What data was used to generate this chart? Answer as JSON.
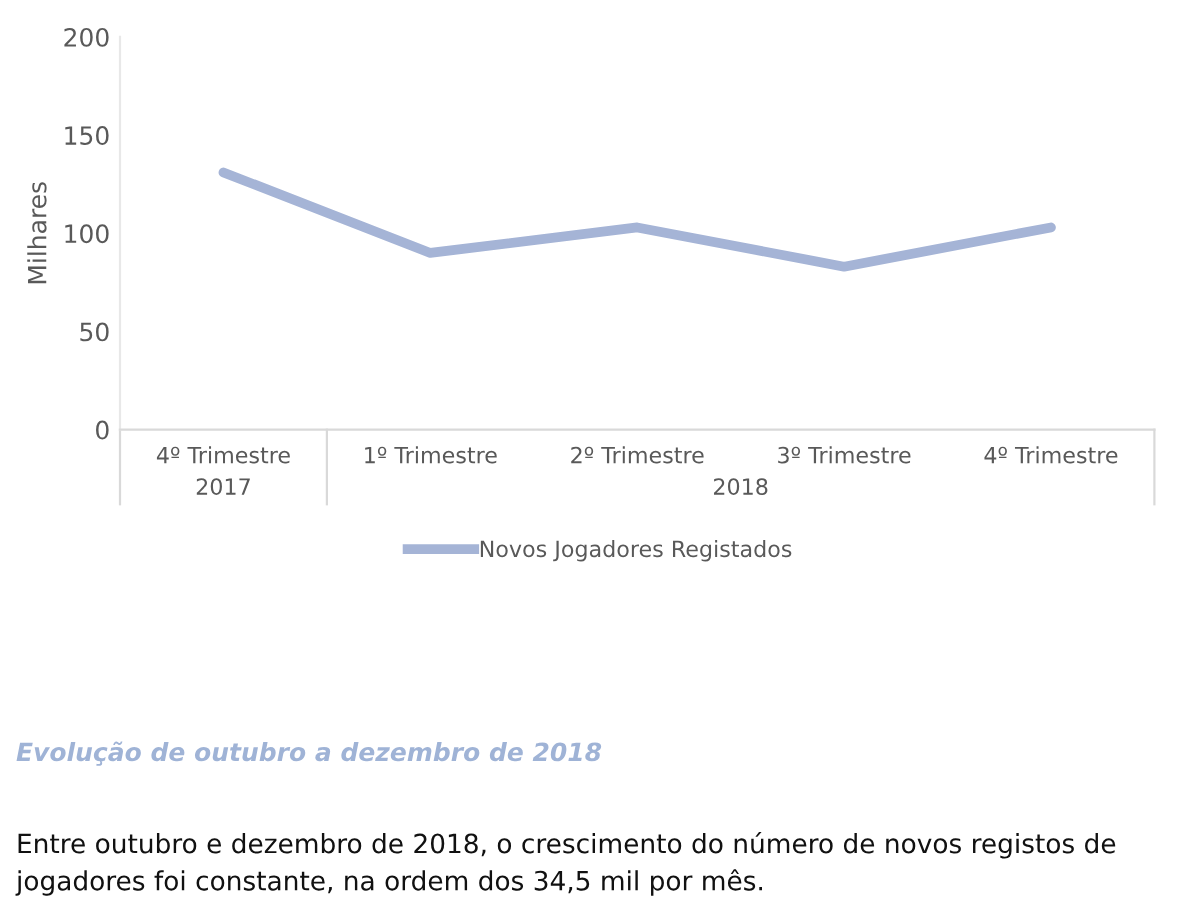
{
  "chart_data": {
    "type": "line",
    "ylabel": "Milhares",
    "categories": [
      "4º Trimestre",
      "1º Trimestre",
      "2º Trimestre",
      "3º Trimestre",
      "4º Trimestre"
    ],
    "series": [
      {
        "name": "Novos Jogadores Registados",
        "color": "#a5b4d6",
        "values": [
          131,
          90,
          103,
          83,
          103
        ]
      }
    ],
    "ylim": [
      0,
      200
    ],
    "yticks": [
      0,
      50,
      100,
      150,
      200
    ],
    "legend": "bottom",
    "marker": "none",
    "line_style": "solid",
    "annotations": [
      "2017",
      "2018",
      "Evolução de outubro a dezembro de 2018",
      "Entre outubro e dezembro de 2018, o crescimento do número de novos registos de jogadores foi constante, na ordem dos 34,5 mil por mês."
    ]
  }
}
